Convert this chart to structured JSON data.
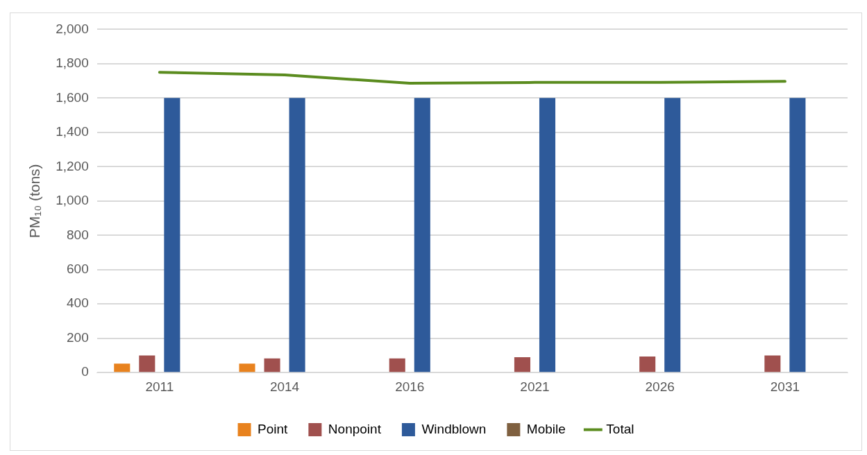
{
  "chart_data": {
    "type": "bar",
    "ylabel": "PM₁₀ (tons)",
    "categories": [
      "2011",
      "2014",
      "2016",
      "2021",
      "2026",
      "2031"
    ],
    "series": [
      {
        "name": "Point",
        "color": "#e8821e",
        "values": [
          52,
          52,
          0,
          0,
          0,
          0
        ]
      },
      {
        "name": "Nonpoint",
        "color": "#a0504e",
        "values": [
          100,
          83,
          83,
          90,
          94,
          100
        ]
      },
      {
        "name": "Windblown",
        "color": "#2e5a9a",
        "values": [
          1600,
          1600,
          1600,
          1600,
          1600,
          1600
        ]
      },
      {
        "name": "Mobile",
        "color": "#7f6040",
        "values": [
          0,
          0,
          0,
          0,
          0,
          0
        ]
      },
      {
        "name": "Total",
        "type": "line",
        "color": "#5b8c1f",
        "values": [
          1750,
          1735,
          1686,
          1691,
          1691,
          1697
        ]
      }
    ],
    "ylim": [
      0,
      2000
    ],
    "yticks": [
      0,
      200,
      400,
      600,
      800,
      {
        "value": 1000,
        "label": "1,000"
      },
      {
        "value": 1200,
        "label": "1,200"
      },
      {
        "value": 1400,
        "label": "1,400"
      },
      {
        "value": 1600,
        "label": "1,600"
      },
      {
        "value": 1800,
        "label": "1,800"
      },
      {
        "value": 2000,
        "label": "2,000"
      }
    ],
    "grid": "y",
    "legend": "bottom",
    "marker": "none"
  }
}
